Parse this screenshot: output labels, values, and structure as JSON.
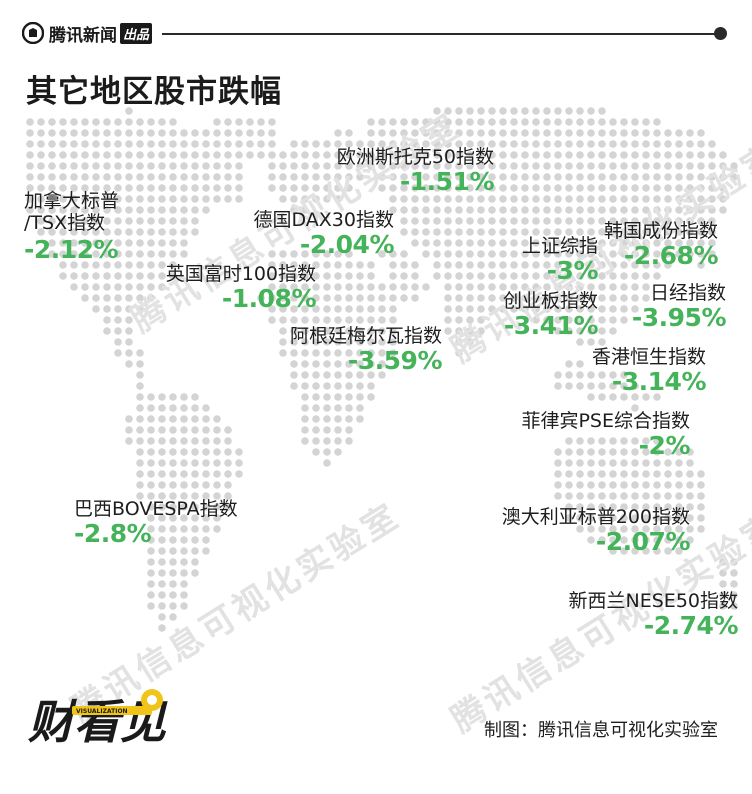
{
  "header": {
    "brand": "腾讯新闻",
    "brand_badge": "出品",
    "title": "其它地区股市跌幅"
  },
  "chart_data": {
    "type": "map",
    "title": "其它地区股市跌幅",
    "markets": [
      {
        "name": "欧洲斯托克50指数",
        "value": "-1.51%"
      },
      {
        "name": "加拿大标普 /TSX指数",
        "value": "-2.12%"
      },
      {
        "name": "德国DAX30指数",
        "value": "-2.04%"
      },
      {
        "name": "英国富时100指数",
        "value": "-1.08%"
      },
      {
        "name": "阿根廷梅尔瓦指数",
        "value": "-3.59%"
      },
      {
        "name": "上证综指",
        "value": "-3%"
      },
      {
        "name": "韩国成份指数",
        "value": "-2.68%"
      },
      {
        "name": "创业板指数",
        "value": "-3.41%"
      },
      {
        "name": "日经指数",
        "value": "-3.95%"
      },
      {
        "name": "香港恒生指数",
        "value": "-3.14%"
      },
      {
        "name": "菲律宾PSE综合指数",
        "value": "-2%"
      },
      {
        "name": "巴西BOVESPA指数",
        "value": "-2.8%"
      },
      {
        "name": "澳大利亚标普200指数",
        "value": "-2.07%"
      },
      {
        "name": "新西兰NESE50指数",
        "value": "-2.74%"
      }
    ]
  },
  "labels": {
    "stoxx_name": "欧洲斯托克50指数",
    "stoxx_val": "-1.51%",
    "tsx_name1": "加拿大标普",
    "tsx_name2": "/TSX指数",
    "tsx_val": "-2.12%",
    "dax_name": "德国DAX30指数",
    "dax_val": "-2.04%",
    "ftse_name": "英国富时100指数",
    "ftse_val": "-1.08%",
    "merv_name": "阿根廷梅尔瓦指数",
    "merv_val": "-3.59%",
    "sse_name": "上证综指",
    "sse_val": "-3%",
    "kospi_name": "韩国成份指数",
    "kospi_val": "-2.68%",
    "gem_name": "创业板指数",
    "gem_val": "-3.41%",
    "nikkei_name": "日经指数",
    "nikkei_val": "-3.95%",
    "hsi_name": "香港恒生指数",
    "hsi_val": "-3.14%",
    "pse_name": "菲律宾PSE综合指数",
    "pse_val": "-2%",
    "bov_name": "巴西BOVESPA指数",
    "bov_val": "-2.8%",
    "asx_name": "澳大利亚标普200指数",
    "asx_val": "-2.07%",
    "nz_name": "新西兰NESE50指数",
    "nz_val": "-2.74%"
  },
  "watermark": "腾讯信息可视化实验室",
  "footer": {
    "logo_text": "财看见",
    "logo_sub": "VISUALIZATION",
    "credit": "制图：腾讯信息可视化实验室"
  },
  "colors": {
    "value_green": "#45b35a",
    "map_dots": "#d4d4d4",
    "text": "#1e1e1e"
  }
}
